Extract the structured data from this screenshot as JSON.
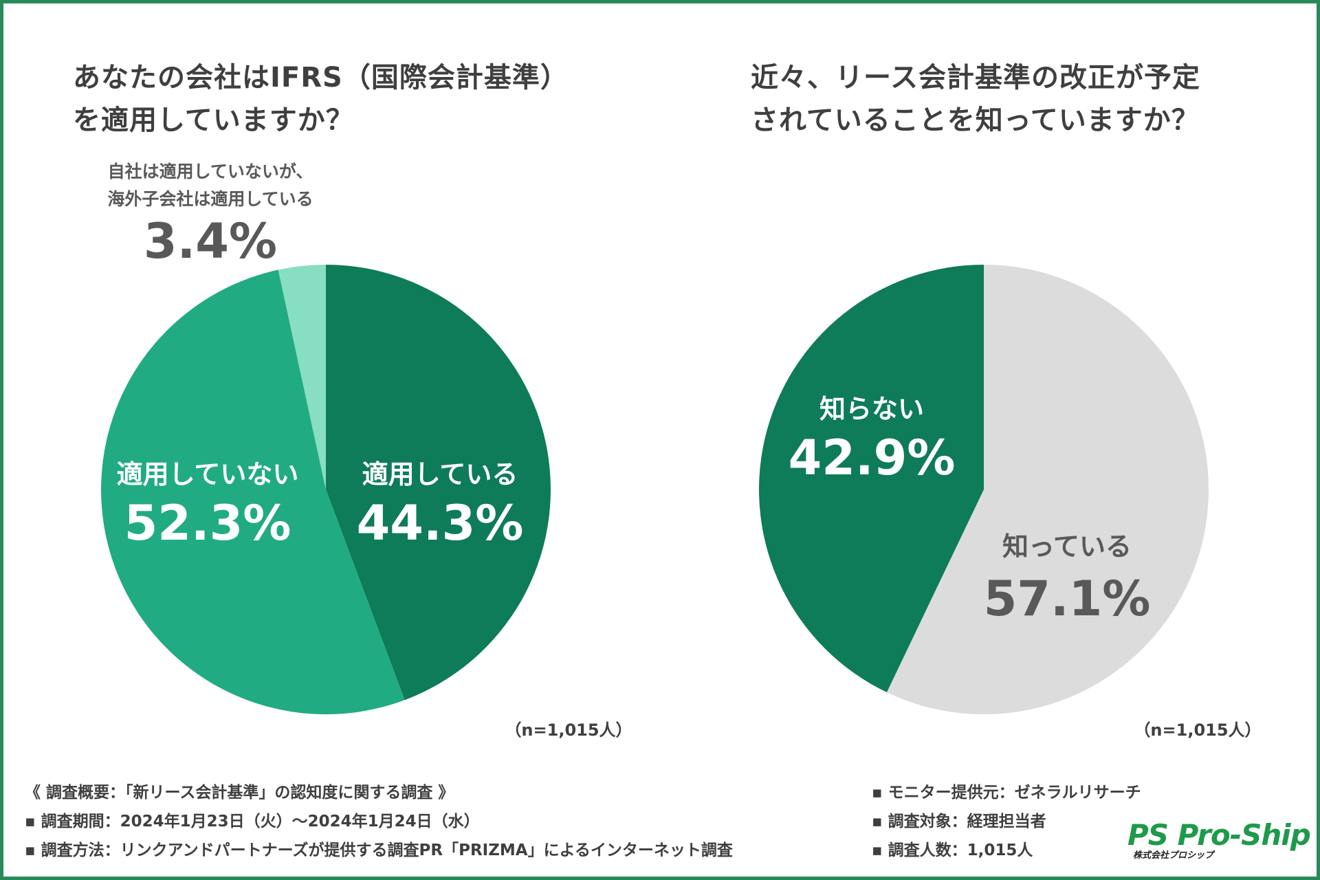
{
  "chart_data": [
    {
      "type": "pie",
      "title": "あなたの会社はIFRS（国際会計基準）を適用していますか？",
      "title_lines": [
        "あなたの会社はIFRS（国際会計基準）",
        "を適用していますか？"
      ],
      "start": "top",
      "direction": "clockwise",
      "slices": [
        {
          "label": "適用している",
          "value": 44.3,
          "display": "44.3%",
          "color": "#0e7b59",
          "text_color": "#ffffff"
        },
        {
          "label": "適用していない",
          "value": 52.3,
          "display": "52.3%",
          "color": "#21ab82",
          "text_color": "#ffffff"
        },
        {
          "label_lines": [
            "自社は適用していないが、",
            "海外子会社は適用している"
          ],
          "value": 3.4,
          "display": "3.4%",
          "color": "#88dec2",
          "text_color": "#595959"
        }
      ],
      "note": "（n=1,015人）"
    },
    {
      "type": "pie",
      "title": "近々、リース会計基準の改正が予定されていることを知っていますか？",
      "title_lines": [
        "近々、リース会計基準の改正が予定",
        "されていることを知っていますか？"
      ],
      "start": "top",
      "direction": "clockwise",
      "slices": [
        {
          "label": "知っている",
          "value": 57.1,
          "display": "57.1%",
          "color": "#dcdcdc",
          "text_color": "#595959"
        },
        {
          "label": "知らない",
          "value": 42.9,
          "display": "42.9%",
          "color": "#0e7b59",
          "text_color": "#ffffff"
        }
      ],
      "note": "（n=1,015人）"
    }
  ],
  "footer": {
    "left": [
      "《 調査概要：「新リース会計基準」の認知度に関する調査 》",
      "▪ 調査期間：2024年1月23日（火）〜2024年1月24日（水）",
      "▪ 調査方法：リンクアンドパートナーズが提供する調査PR「PRIZMA」によるインターネット調査"
    ],
    "right": [
      "▪ モニター提供元：ゼネラルリサーチ",
      "▪ 調査対象：経理担当者",
      "▪ 調査人数：1,015人"
    ]
  },
  "logo": {
    "main": "PS Pro-Ship",
    "sub": "株式会社プロシップ"
  },
  "colors": {
    "border": "#2b8a5a",
    "text": "#3f3f3f"
  }
}
